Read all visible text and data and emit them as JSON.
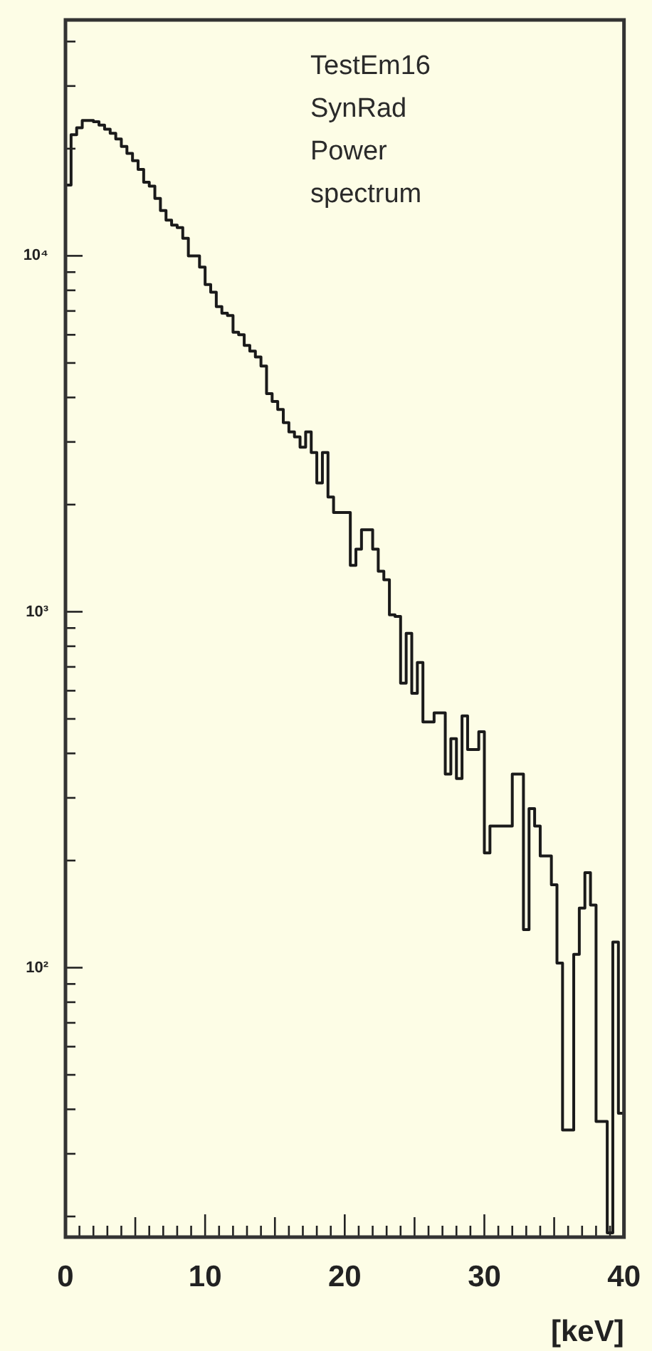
{
  "chart_data": {
    "type": "histogram",
    "xlabel": "[keV]",
    "annotations": [
      "TestEm16",
      "SynRad",
      "Power spectrum"
    ],
    "bins": [
      0,
      0.4,
      0.8,
      1.2,
      1.6,
      2,
      2.4,
      2.8,
      3.2,
      3.6,
      4,
      4.4,
      4.8,
      5.2,
      5.6,
      6,
      6.4,
      6.8,
      7.2,
      7.6,
      8,
      8.4,
      8.8,
      9.2,
      9.6,
      10,
      10.4,
      10.8,
      11.2,
      11.6,
      12,
      12.4,
      12.8,
      13.2,
      13.6,
      14,
      14.4,
      14.8,
      15.2,
      15.6,
      16,
      16.4,
      16.8,
      17.2,
      17.6,
      18,
      18.4,
      18.8,
      19.2,
      19.6,
      20,
      20.4,
      20.8,
      21.2,
      21.6,
      22,
      22.4,
      22.8,
      23.2,
      23.6,
      24,
      24.4,
      24.8,
      25.2,
      25.6,
      26,
      26.4,
      26.8,
      27.2,
      27.6,
      28,
      28.4,
      28.8,
      29.2,
      29.6,
      30,
      30.4,
      30.8,
      31.2,
      31.6,
      32,
      32.4,
      32.8,
      33.2,
      33.6,
      34,
      34.4,
      34.8,
      35.2,
      35.6,
      36,
      36.4,
      36.8,
      37.2,
      37.6,
      38,
      38.4,
      38.8,
      39.2,
      39.6,
      40
    ],
    "values": [
      15800,
      21900,
      22900,
      24000,
      24000,
      23800,
      23300,
      22700,
      22100,
      21300,
      20300,
      19400,
      18500,
      17500,
      16100,
      15700,
      14500,
      13400,
      12600,
      12200,
      12000,
      11200,
      10000,
      10000,
      9300,
      8300,
      7900,
      7200,
      6900,
      6800,
      6100,
      6000,
      5600,
      5400,
      5200,
      4900,
      4100,
      3900,
      3700,
      3400,
      3200,
      3100,
      2900,
      3200,
      2800,
      2300,
      2800,
      2100,
      1900,
      1900,
      1900,
      1350,
      1500,
      1700,
      1700,
      1500,
      1300,
      1230,
      980,
      970,
      630,
      870,
      590,
      720,
      490,
      490,
      520,
      520,
      350,
      440,
      340,
      510,
      410,
      410,
      460,
      210,
      250,
      250,
      250,
      250,
      350,
      350,
      128,
      280,
      250,
      206,
      206,
      171,
      103,
      35,
      35,
      109,
      147,
      185,
      150,
      37,
      37,
      18,
      118,
      39
    ],
    "color": "#1a1a1a",
    "log": "y",
    "xlim": [
      0,
      40
    ],
    "ylim": [
      17.5,
      46000
    ],
    "xticks": [
      0,
      {
        "value": 1,
        "label": null
      },
      {
        "value": 2,
        "label": null
      },
      {
        "value": 3,
        "label": null
      },
      {
        "value": 4,
        "label": null
      },
      {
        "value": 5,
        "label": null
      },
      {
        "value": 6,
        "label": null
      },
      {
        "value": 7,
        "label": null
      },
      {
        "value": 8,
        "label": null
      },
      {
        "value": 9,
        "label": null
      },
      10,
      {
        "value": 11,
        "label": null
      },
      {
        "value": 12,
        "label": null
      },
      {
        "value": 13,
        "label": null
      },
      {
        "value": 14,
        "label": null
      },
      {
        "value": 15,
        "label": null
      },
      {
        "value": 16,
        "label": null
      },
      {
        "value": 17,
        "label": null
      },
      {
        "value": 18,
        "label": null
      },
      {
        "value": 19,
        "label": null
      },
      20,
      {
        "value": 21,
        "label": null
      },
      {
        "value": 22,
        "label": null
      },
      {
        "value": 23,
        "label": null
      },
      {
        "value": 24,
        "label": null
      },
      {
        "value": 25,
        "label": null
      },
      {
        "value": 26,
        "label": null
      },
      {
        "value": 27,
        "label": null
      },
      {
        "value": 28,
        "label": null
      },
      {
        "value": 29,
        "label": null
      },
      30,
      {
        "value": 31,
        "label": null
      },
      {
        "value": 32,
        "label": null
      },
      {
        "value": 33,
        "label": null
      },
      {
        "value": 34,
        "label": null
      },
      {
        "value": 35,
        "label": null
      },
      {
        "value": 36,
        "label": null
      },
      {
        "value": 37,
        "label": null
      },
      {
        "value": 38,
        "label": null
      },
      {
        "value": 39,
        "label": null
      },
      40
    ],
    "yticks": [
      {
        "value": 20,
        "label": null
      },
      {
        "value": 30,
        "label": null
      },
      {
        "value": 40,
        "label": null
      },
      {
        "value": 50,
        "label": null
      },
      {
        "value": 60,
        "label": null
      },
      {
        "value": 70,
        "label": null
      },
      {
        "value": 80,
        "label": null
      },
      {
        "value": 90,
        "label": null
      },
      {
        "value": 100,
        "label": "10²"
      },
      {
        "value": 200,
        "label": null
      },
      {
        "value": 300,
        "label": null
      },
      {
        "value": 400,
        "label": null
      },
      {
        "value": 500,
        "label": null
      },
      {
        "value": 600,
        "label": null
      },
      {
        "value": 700,
        "label": null
      },
      {
        "value": 800,
        "label": null
      },
      {
        "value": 900,
        "label": null
      },
      {
        "value": 1000,
        "label": "10³"
      },
      {
        "value": 2000,
        "label": null
      },
      {
        "value": 3000,
        "label": null
      },
      {
        "value": 4000,
        "label": null
      },
      {
        "value": 5000,
        "label": null
      },
      {
        "value": 6000,
        "label": null
      },
      {
        "value": 7000,
        "label": null
      },
      {
        "value": 8000,
        "label": null
      },
      {
        "value": 9000,
        "label": null
      },
      {
        "value": 10000,
        "label": "10⁴"
      },
      {
        "value": 20000,
        "label": null
      },
      {
        "value": 30000,
        "label": null
      },
      {
        "value": 40000,
        "label": null
      }
    ]
  }
}
